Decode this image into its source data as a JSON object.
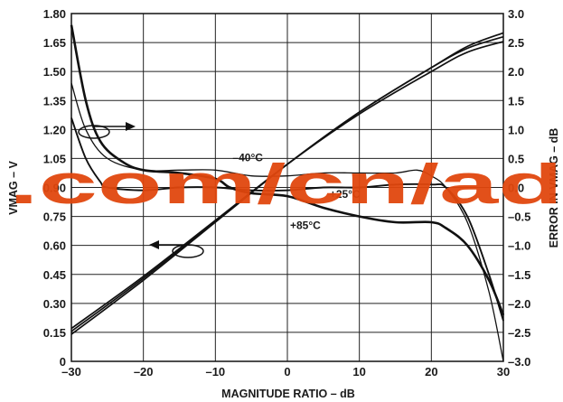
{
  "chart_data": {
    "type": "line",
    "title": "",
    "xlabel": "MAGNITUDE RATIO – dB",
    "ylabel": "VMAG – V",
    "y2label": "ERROR IN VMAG – dB",
    "xlim": [
      -30,
      30
    ],
    "ylim": [
      0,
      1.8
    ],
    "y2lim": [
      -3.0,
      3.0
    ],
    "grid": true,
    "x_ticks": [
      -30,
      -20,
      -10,
      0,
      10,
      20,
      30
    ],
    "x_tick_labels": [
      "–30",
      "–20",
      "–10",
      "0",
      "10",
      "20",
      "30"
    ],
    "y_ticks": [
      0,
      0.15,
      0.3,
      0.45,
      0.6,
      0.75,
      0.9,
      1.05,
      1.2,
      1.35,
      1.5,
      1.65,
      1.8
    ],
    "y_tick_labels": [
      "0",
      "0.15",
      "0.30",
      "0.45",
      "0.60",
      "0.75",
      "0.90",
      "1.05",
      "1.20",
      "1.35",
      "1.50",
      "1.65",
      "1.80"
    ],
    "y2_ticks": [
      -3.0,
      -2.5,
      -2.0,
      -1.5,
      -1.0,
      -0.5,
      0,
      0.5,
      1.0,
      1.5,
      2.0,
      2.5,
      3.0
    ],
    "y2_tick_labels": [
      "–3.0",
      "–2.5",
      "–2.0",
      "–1.5",
      "–1.0",
      "–0.5",
      "0.0",
      "0.5",
      "1.0",
      "1.5",
      "2.0",
      "2.5",
      "3.0"
    ],
    "series": [
      {
        "name": "-40°C",
        "axis": "left",
        "x": [
          -30,
          -20,
          -10,
          0,
          10,
          20,
          25,
          30
        ],
        "y": [
          0.14,
          0.42,
          0.72,
          1.02,
          1.29,
          1.52,
          1.62,
          1.68
        ]
      },
      {
        "name": "+25°C",
        "axis": "left",
        "x": [
          -30,
          -20,
          -10,
          0,
          10,
          20,
          25,
          30
        ],
        "y": [
          0.155,
          0.43,
          0.725,
          1.02,
          1.28,
          1.5,
          1.6,
          1.655
        ]
      },
      {
        "name": "+85°C",
        "axis": "left",
        "x": [
          -30,
          -20,
          -10,
          0,
          10,
          20,
          25,
          30
        ],
        "y": [
          0.17,
          0.44,
          0.73,
          1.02,
          1.29,
          1.52,
          1.63,
          1.7
        ]
      },
      {
        "name": "-40°C",
        "axis": "right",
        "x": [
          -30,
          -28,
          -25,
          -20,
          -15,
          -10,
          -5,
          0,
          5,
          10,
          15,
          18,
          20,
          22,
          25,
          28,
          30
        ],
        "y": [
          1.8,
          1.0,
          0.5,
          0.3,
          0.3,
          0.3,
          0.2,
          0.2,
          0.25,
          0.25,
          0.25,
          0.3,
          0.2,
          0.0,
          -0.6,
          -1.8,
          -3.0
        ]
      },
      {
        "name": "+25°C",
        "axis": "right",
        "x": [
          -30,
          -28,
          -26,
          -25,
          -20,
          -15,
          -10,
          -5,
          0,
          5,
          10,
          15,
          20,
          22,
          25,
          28,
          30
        ],
        "y": [
          1.2,
          0.5,
          0.1,
          0.0,
          -0.05,
          0.0,
          0.0,
          -0.05,
          -0.05,
          0.0,
          0.0,
          0.05,
          0.05,
          0.0,
          -0.5,
          -1.5,
          -2.3
        ]
      },
      {
        "name": "+85°C",
        "axis": "right",
        "x": [
          -30,
          -28,
          -26,
          -23,
          -20,
          -15,
          -10,
          -8,
          -5,
          0,
          5,
          10,
          15,
          20,
          22,
          25,
          28,
          30
        ],
        "y": [
          2.8,
          1.5,
          0.8,
          0.45,
          0.3,
          0.25,
          0.15,
          0.0,
          -0.1,
          -0.15,
          -0.35,
          -0.5,
          -0.6,
          -0.6,
          -0.7,
          -1.0,
          -1.6,
          -2.2
        ]
      }
    ],
    "annotations": [
      {
        "text": "–40°C",
        "x": -5.5,
        "axis": "right",
        "y": 0.45
      },
      {
        "text": "+25°C",
        "x": 8,
        "axis": "right",
        "y": -0.18
      },
      {
        "text": "+85°C",
        "x": 2.5,
        "axis": "right",
        "y": -0.72
      }
    ]
  },
  "watermark": {
    "text": ".com/cn/ad",
    "color": "#e0470e"
  }
}
